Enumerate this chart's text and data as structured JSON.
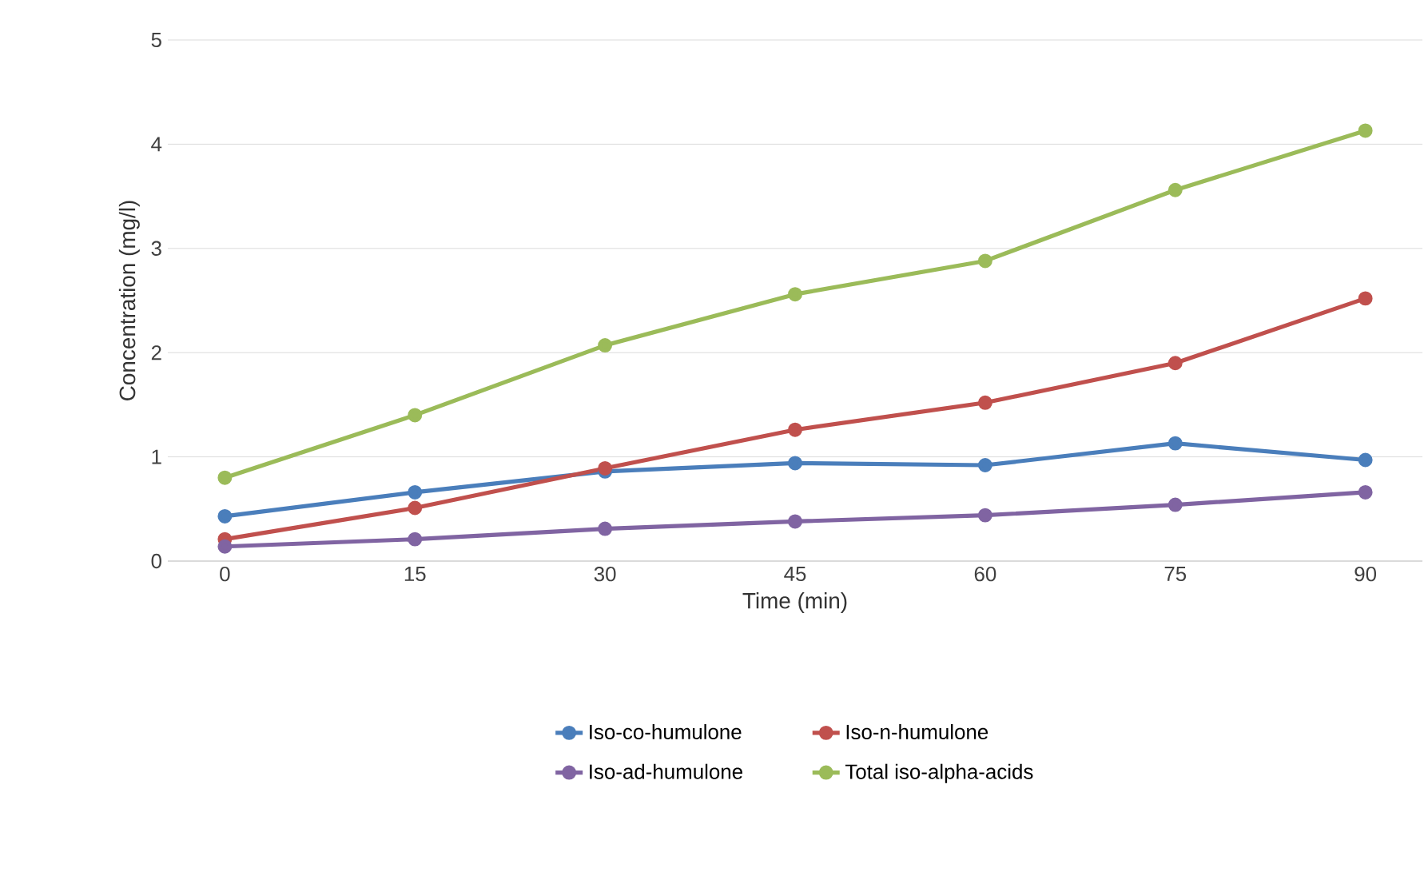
{
  "chart_data": {
    "type": "line",
    "xlabel": "Time (min)",
    "ylabel": "Concentration (mg/l)",
    "categories": [
      "0",
      "15",
      "30",
      "45",
      "60",
      "75",
      "90"
    ],
    "ylim": [
      0,
      5
    ],
    "yticks": [
      0,
      1,
      2,
      3,
      4,
      5
    ],
    "grid": "y",
    "legend": "bottom",
    "marker": "circle",
    "line_style": "solid",
    "series": [
      {
        "name": "Iso-co-humulone",
        "color": "#4a7ebb",
        "values": [
          0.43,
          0.66,
          0.86,
          0.94,
          0.92,
          1.13,
          0.97
        ]
      },
      {
        "name": "Iso-n-humulone",
        "color": "#c0504d",
        "values": [
          0.21,
          0.51,
          0.89,
          1.26,
          1.52,
          1.9,
          2.52
        ]
      },
      {
        "name": "Iso-ad-humulone",
        "color": "#8064a2",
        "values": [
          0.14,
          0.21,
          0.31,
          0.38,
          0.44,
          0.54,
          0.66
        ]
      },
      {
        "name": "Total iso-alpha-acids",
        "color": "#9bbb59",
        "values": [
          0.8,
          1.4,
          2.07,
          2.56,
          2.88,
          3.56,
          4.13
        ]
      }
    ]
  }
}
